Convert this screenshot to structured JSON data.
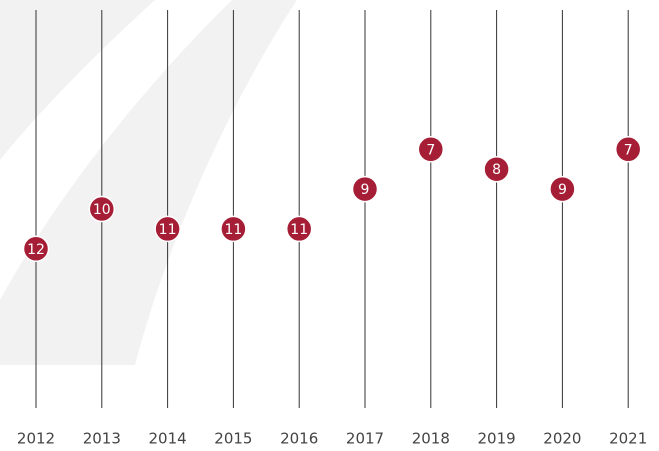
{
  "chart_data": {
    "type": "dot",
    "categories": [
      "2012",
      "2013",
      "2014",
      "2015",
      "2016",
      "2017",
      "2018",
      "2019",
      "2020",
      "2021"
    ],
    "values": [
      12,
      10,
      11,
      11,
      11,
      9,
      7,
      8,
      9,
      7
    ],
    "color": "#a51e36",
    "ylim": [
      20,
      0
    ]
  }
}
